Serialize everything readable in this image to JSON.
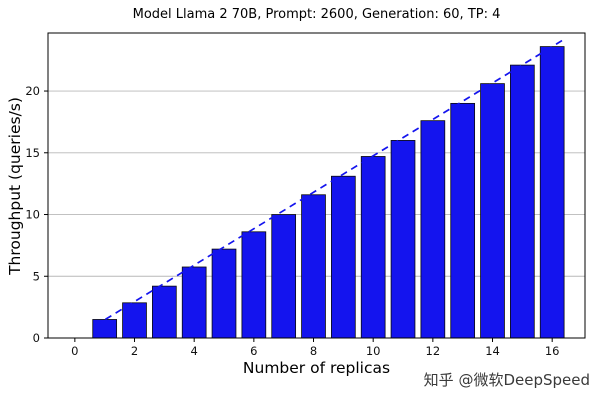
{
  "chart_data": {
    "type": "bar",
    "title": "Model Llama 2 70B, Prompt: 2600, Generation: 60, TP: 4",
    "xlabel": "Number of replicas",
    "ylabel": "Throughput (queries/s)",
    "categories": [
      1,
      2,
      3,
      4,
      5,
      6,
      7,
      8,
      9,
      10,
      11,
      12,
      13,
      14,
      15,
      16
    ],
    "values": [
      1.5,
      2.85,
      4.2,
      5.75,
      7.2,
      8.6,
      10.0,
      11.6,
      13.1,
      14.7,
      16.0,
      17.6,
      19.0,
      20.6,
      22.1,
      23.6
    ],
    "trendline": {
      "name": "ideal-linear-scaling",
      "style": "dashed",
      "slope": 1.475,
      "x0": 0.68,
      "x1": 16.42
    },
    "xlim": [
      -0.9,
      17.1
    ],
    "ylim": [
      0,
      24.7
    ],
    "xticks": [
      0,
      2,
      4,
      6,
      8,
      10,
      12,
      14,
      16
    ],
    "yticks": [
      0,
      5,
      10,
      15,
      20
    ],
    "grid": "horizontal-major",
    "bar_width": 0.8,
    "bar_color": "#1414ee",
    "bar_edge_color": "#0a0a0a",
    "line_color": "#1414ee",
    "grid_color": "#b8b8b8",
    "axis_color": "#000000",
    "tick_label_color": "#111111"
  },
  "watermark": {
    "text": "知乎 @微软DeepSpeed",
    "color": "#3a3a3a"
  }
}
